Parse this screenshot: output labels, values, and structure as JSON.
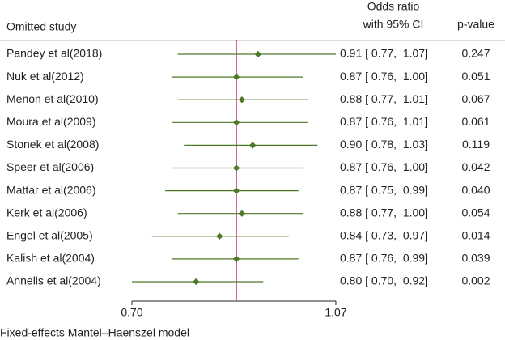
{
  "chart_data": {
    "type": "forest",
    "header": {
      "study": "Omitted study",
      "estimate_line1": "Odds ratio",
      "estimate_line2": "with 95% CI",
      "p": "p-value"
    },
    "footer": "Fixed-effects Mantel–Haenszel model",
    "categories": [
      "Pandey et al(2018)",
      "Nuk et al(2012)",
      "Menon et al(2010)",
      "Moura et al(2009)",
      "Stonek et al(2008)",
      "Speer et al(2006)",
      "Mattar et al(2006)",
      "Kerk et al(2006)",
      "Engel et al(2005)",
      "Kalish et al(2004)",
      "Annells et al(2004)"
    ],
    "values": [
      0.91,
      0.87,
      0.88,
      0.87,
      0.9,
      0.87,
      0.87,
      0.88,
      0.84,
      0.87,
      0.8
    ],
    "lower": [
      0.77,
      0.76,
      0.77,
      0.76,
      0.78,
      0.76,
      0.75,
      0.77,
      0.73,
      0.76,
      0.7
    ],
    "upper": [
      1.07,
      1.0,
      1.01,
      1.01,
      1.03,
      1.0,
      0.99,
      1.0,
      0.97,
      0.99,
      0.92
    ],
    "value_labels": [
      "0.91 [ 0.77,  1.07]",
      "0.87 [ 0.76,  1.00]",
      "0.88 [ 0.77,  1.01]",
      "0.87 [ 0.76,  1.01]",
      "0.90 [ 0.78,  1.03]",
      "0.87 [ 0.76,  1.00]",
      "0.87 [ 0.75,  0.99]",
      "0.88 [ 0.77,  1.00]",
      "0.84 [ 0.73,  0.97]",
      "0.87 [ 0.76,  0.99]",
      "0.80 [ 0.70,  0.92]"
    ],
    "p_values": [
      "0.247",
      "0.051",
      "0.067",
      "0.061",
      "0.119",
      "0.042",
      "0.040",
      "0.054",
      "0.014",
      "0.039",
      "0.002"
    ],
    "overall": 0.87,
    "log_scale": true,
    "xlim": [
      0.7,
      1.07
    ],
    "xticks": [
      {
        "value": 0.7,
        "label": "0.70"
      },
      1.07
    ],
    "color": "#4e7a27",
    "overall_color": "#c8366b"
  }
}
